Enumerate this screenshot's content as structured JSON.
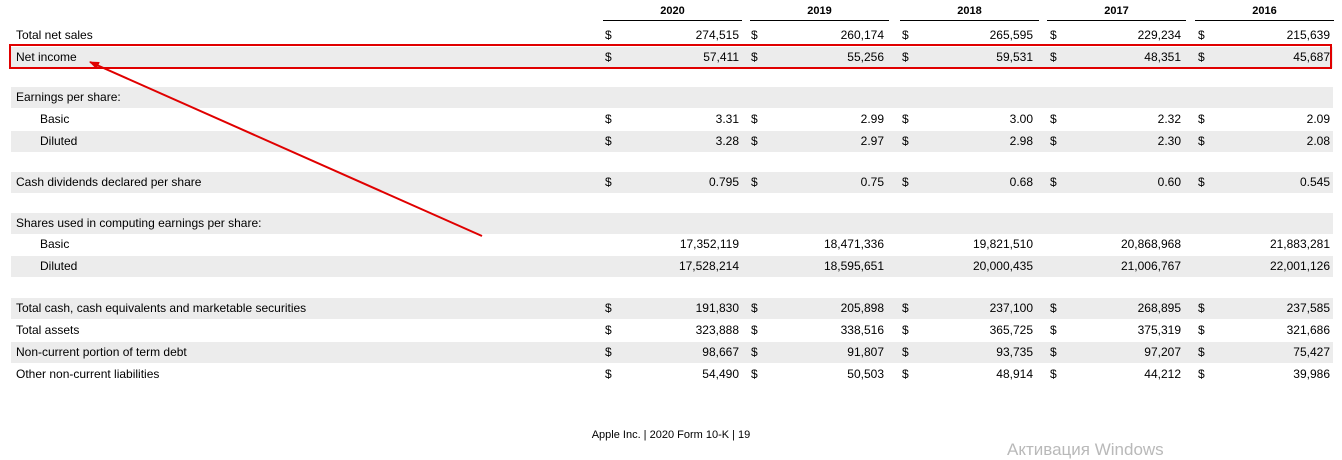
{
  "years": [
    "2020",
    "2019",
    "2018",
    "2017",
    "2016"
  ],
  "currency_symbol": "$",
  "rows": [
    {
      "label": "Total net sales",
      "indent": false,
      "shade": false,
      "currency": true,
      "values": [
        "274,515",
        "260,174",
        "265,595",
        "229,234",
        "215,639"
      ]
    },
    {
      "label": "Net income",
      "indent": false,
      "shade": true,
      "currency": true,
      "values": [
        "57,411",
        "55,256",
        "59,531",
        "48,351",
        "45,687"
      ]
    },
    {
      "spacer": true
    },
    {
      "label": "Earnings per share:",
      "indent": false,
      "shade": true,
      "currency": false,
      "values": []
    },
    {
      "label": "Basic",
      "indent": true,
      "shade": false,
      "currency": true,
      "values": [
        "3.31",
        "2.99",
        "3.00",
        "2.32",
        "2.09"
      ]
    },
    {
      "label": "Diluted",
      "indent": true,
      "shade": true,
      "currency": true,
      "values": [
        "3.28",
        "2.97",
        "2.98",
        "2.30",
        "2.08"
      ]
    },
    {
      "spacer": true
    },
    {
      "label": "Cash dividends declared per share",
      "indent": false,
      "shade": true,
      "currency": true,
      "values": [
        "0.795",
        "0.75",
        "0.68",
        "0.60",
        "0.545"
      ]
    },
    {
      "spacer": true
    },
    {
      "label": "Shares used in computing earnings per share:",
      "indent": false,
      "shade": true,
      "currency": false,
      "values": []
    },
    {
      "label": "Basic",
      "indent": true,
      "shade": false,
      "currency": false,
      "values": [
        "17,352,119",
        "18,471,336",
        "19,821,510",
        "20,868,968",
        "21,883,281"
      ]
    },
    {
      "label": "Diluted",
      "indent": true,
      "shade": true,
      "currency": false,
      "values": [
        "17,528,214",
        "18,595,651",
        "20,000,435",
        "21,006,767",
        "22,001,126"
      ]
    },
    {
      "spacer": true
    },
    {
      "label": "Total cash, cash equivalents and marketable securities",
      "indent": false,
      "shade": true,
      "currency": true,
      "values": [
        "191,830",
        "205,898",
        "237,100",
        "268,895",
        "237,585"
      ]
    },
    {
      "label": "Total assets",
      "indent": false,
      "shade": false,
      "currency": true,
      "values": [
        "323,888",
        "338,516",
        "365,725",
        "375,319",
        "321,686"
      ]
    },
    {
      "label": "Non-current portion of term debt",
      "indent": false,
      "shade": true,
      "currency": true,
      "values": [
        "98,667",
        "91,807",
        "93,735",
        "97,207",
        "75,427"
      ]
    },
    {
      "label": "Other non-current liabilities",
      "indent": false,
      "shade": false,
      "currency": true,
      "values": [
        "54,490",
        "50,503",
        "48,914",
        "44,212",
        "39,986"
      ]
    }
  ],
  "footer": "Apple Inc. | 2020 Form 10-K | 19",
  "watermark": "Активация Windows",
  "annotation_color": "#e00000"
}
